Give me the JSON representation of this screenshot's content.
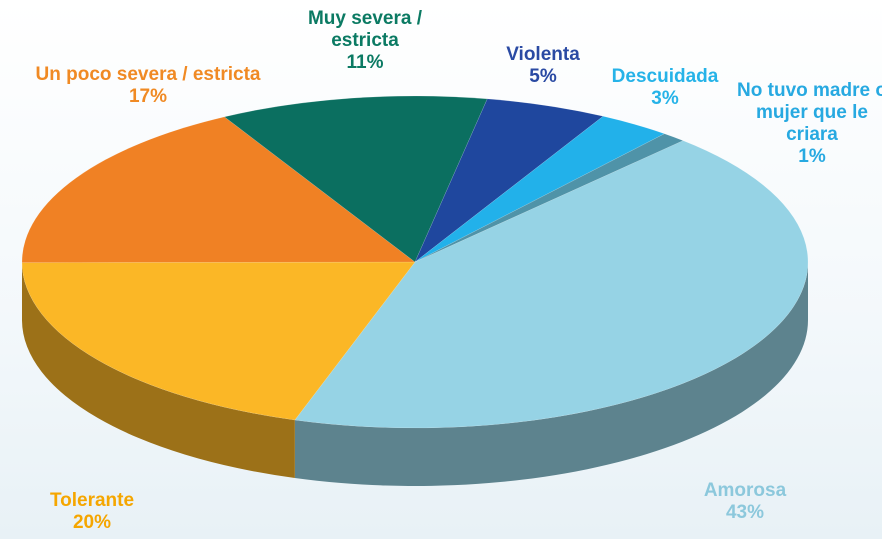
{
  "chart_data": {
    "type": "pie",
    "three_d": true,
    "categories": [
      "Amorosa",
      "Tolerante",
      "Un poco severa / estricta",
      "Muy severa / estricta",
      "Violenta",
      "Descuidada",
      "No tuvo madre o mujer que le criara"
    ],
    "values": [
      43,
      20,
      17,
      11,
      5,
      3,
      1
    ],
    "value_labels": [
      "43%",
      "20%",
      "17%",
      "11%",
      "5%",
      "3%",
      "1%"
    ],
    "colors": [
      "#96d3e5",
      "#fbb726",
      "#f08124",
      "#0b6f60",
      "#1f479e",
      "#22b1ea",
      "#4f93a8"
    ],
    "label_colors": [
      "#8cc8dc",
      "#f5a600",
      "#f08a24",
      "#0b7a63",
      "#2a4aa3",
      "#26b3e8",
      "#27a9e1"
    ]
  }
}
